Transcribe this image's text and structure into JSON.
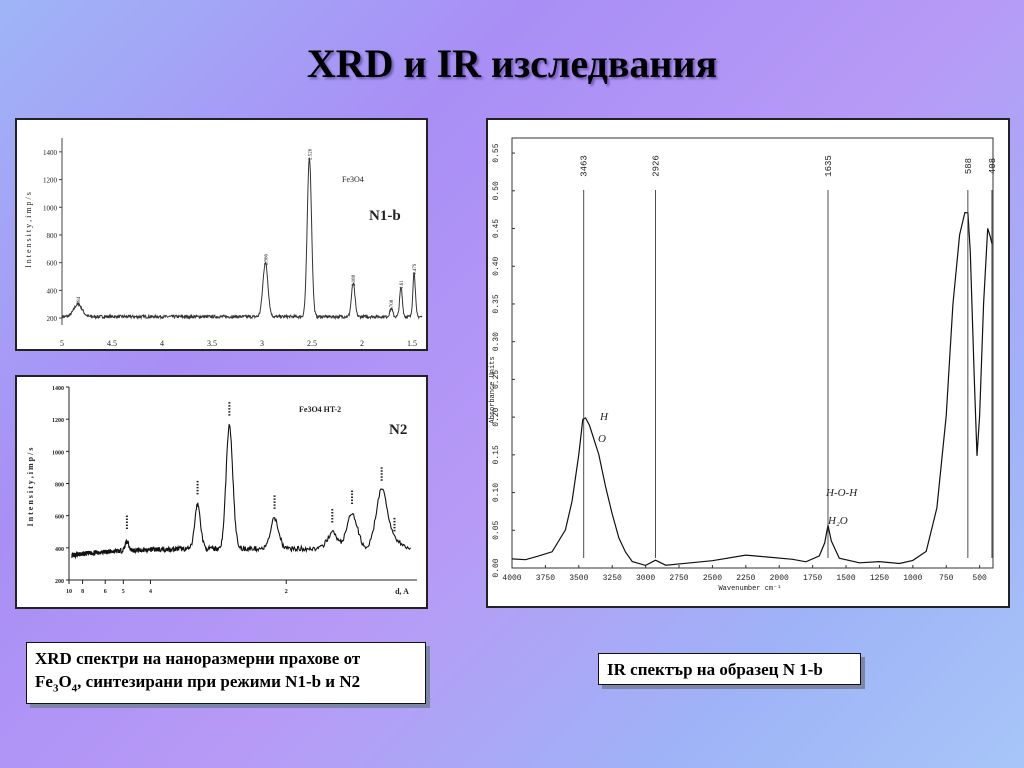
{
  "slide": {
    "title": "XRD и IR изследвания"
  },
  "captions": {
    "xrd": {
      "line1": "XRD спектри на наноразмерни прахове от",
      "line2_pre": "Fe",
      "line2_sub1": "3",
      "line2_mid": "O",
      "line2_sub2": "4",
      "line2_post": ", синтезирани при режими N1-b и N2"
    },
    "ir": "IR спектър на образец N 1-b"
  },
  "chart_data": [
    {
      "id": "xrd-n1b",
      "type": "line",
      "panel_label": "N1-b",
      "compound_label": "Fe3O4",
      "ylabel": "I n t e n s i t y ,  i m p / s",
      "xlabel": "",
      "x_axis_reversed": true,
      "xlim": [
        5.0,
        1.4
      ],
      "ylim": [
        150,
        1500
      ],
      "x_ticks": [
        {
          "value": 5,
          "label": "5"
        },
        {
          "value": 4.5,
          "label": "4.5"
        },
        {
          "value": 4,
          "label": "4"
        },
        {
          "value": 3.5,
          "label": "3.5"
        },
        {
          "value": 3,
          "label": "3"
        },
        {
          "value": 2.5,
          "label": "2.5"
        },
        {
          "value": 2,
          "label": "2"
        },
        {
          "value": 1.5,
          "label": "1.5"
        }
      ],
      "y_ticks": [
        200,
        400,
        600,
        800,
        1000,
        1200,
        1400
      ],
      "baseline": 210,
      "peaks": [
        {
          "d": 4.84,
          "height": 300,
          "label": "4.84"
        },
        {
          "d": 2.966,
          "height": 600,
          "label": "2.966"
        },
        {
          "d": 2.526,
          "height": 1360,
          "label": "2.526"
        },
        {
          "d": 2.088,
          "height": 450,
          "label": "2.088"
        },
        {
          "d": 1.708,
          "height": 270,
          "label": "1.708"
        },
        {
          "d": 1.61,
          "height": 420,
          "label": "1.61"
        },
        {
          "d": 1.479,
          "height": 530,
          "label": "1.479"
        }
      ]
    },
    {
      "id": "xrd-n2",
      "type": "line",
      "panel_label": "N2",
      "compound_label": "Fe3O4 HT-2",
      "ylabel": "I n t e n s i t y ,  i m p / s",
      "xlabel": "d, A",
      "x_axis_reversed": true,
      "xlim": [
        10,
        1.35
      ],
      "ylim": [
        200,
        1400
      ],
      "x_ticks": [
        {
          "value": 10,
          "label": "10"
        },
        {
          "value": 8,
          "label": "8"
        },
        {
          "value": 6,
          "label": "6"
        },
        {
          "value": 5,
          "label": "5"
        },
        {
          "value": 4,
          "label": "4"
        },
        {
          "value": 2,
          "label": "2"
        }
      ],
      "y_ticks": [
        200,
        400,
        600,
        800,
        1000,
        1200,
        1400
      ],
      "baseline": 395,
      "peaks": [
        {
          "d": 4.84,
          "height": 455
        },
        {
          "d": 2.97,
          "height": 670
        },
        {
          "d": 2.53,
          "height": 1160
        },
        {
          "d": 2.09,
          "height": 580
        },
        {
          "d": 1.71,
          "height": 495
        },
        {
          "d": 1.61,
          "height": 610
        },
        {
          "d": 1.48,
          "height": 755
        },
        {
          "d": 1.43,
          "height": 440
        }
      ]
    },
    {
      "id": "ir-1b",
      "type": "line",
      "panel_label": "",
      "ylabel": "Absorbance Units",
      "xlabel": "Wavenumber cm⁻¹",
      "x_axis_reversed": true,
      "xlim": [
        4000,
        400
      ],
      "ylim": [
        0.0,
        0.57
      ],
      "x_ticks": [
        4000,
        3750,
        3500,
        3250,
        3000,
        2750,
        2500,
        2250,
        2000,
        1750,
        1500,
        1250,
        1000,
        750,
        500
      ],
      "x_tick_labels": [
        "4000",
        "3750",
        "3500",
        "3250",
        "3000",
        "2750",
        "2500",
        "2250",
        "2000",
        "1750",
        "1500",
        "1250",
        "1000",
        "750",
        "500"
      ],
      "y_ticks": [
        0.0,
        0.05,
        0.1,
        0.15,
        0.2,
        0.25,
        0.3,
        0.35,
        0.4,
        0.45,
        0.5,
        0.55
      ],
      "y_tick_labels": [
        "0.00",
        "0.05",
        "0.10",
        "0.15",
        "0.20",
        "0.25",
        "0.30",
        "0.35",
        "0.40",
        "0.45",
        "0.50",
        "0.55"
      ],
      "marked_peaks": [
        {
          "wavenumber": 3463,
          "label": "3463"
        },
        {
          "wavenumber": 2926,
          "label": "2926"
        },
        {
          "wavenumber": 1635,
          "label": "1635"
        },
        {
          "wavenumber": 588,
          "label": "588"
        },
        {
          "wavenumber": 408,
          "label": "408"
        }
      ],
      "annotations": [
        "H",
        "O",
        "H-O-H",
        "H₂O"
      ],
      "points": [
        [
          4000,
          0.012
        ],
        [
          3900,
          0.013
        ],
        [
          3800,
          0.015
        ],
        [
          3700,
          0.02
        ],
        [
          3600,
          0.05
        ],
        [
          3550,
          0.09
        ],
        [
          3500,
          0.15
        ],
        [
          3470,
          0.195
        ],
        [
          3450,
          0.2
        ],
        [
          3420,
          0.19
        ],
        [
          3350,
          0.15
        ],
        [
          3300,
          0.11
        ],
        [
          3250,
          0.07
        ],
        [
          3200,
          0.04
        ],
        [
          3150,
          0.02
        ],
        [
          3100,
          0.01
        ],
        [
          3000,
          0.005
        ],
        [
          2926,
          0.012
        ],
        [
          2850,
          0.005
        ],
        [
          2700,
          0.008
        ],
        [
          2500,
          0.01
        ],
        [
          2250,
          0.016
        ],
        [
          2100,
          0.015
        ],
        [
          1900,
          0.012
        ],
        [
          1800,
          0.008
        ],
        [
          1700,
          0.015
        ],
        [
          1660,
          0.035
        ],
        [
          1635,
          0.055
        ],
        [
          1610,
          0.035
        ],
        [
          1550,
          0.012
        ],
        [
          1400,
          0.006
        ],
        [
          1250,
          0.01
        ],
        [
          1100,
          0.008
        ],
        [
          1000,
          0.01
        ],
        [
          900,
          0.02
        ],
        [
          820,
          0.08
        ],
        [
          750,
          0.2
        ],
        [
          700,
          0.35
        ],
        [
          650,
          0.44
        ],
        [
          610,
          0.47
        ],
        [
          588,
          0.47
        ],
        [
          570,
          0.42
        ],
        [
          540,
          0.25
        ],
        [
          520,
          0.15
        ],
        [
          500,
          0.2
        ],
        [
          470,
          0.35
        ],
        [
          440,
          0.45
        ],
        [
          420,
          0.44
        ],
        [
          408,
          0.43
        ]
      ]
    }
  ]
}
